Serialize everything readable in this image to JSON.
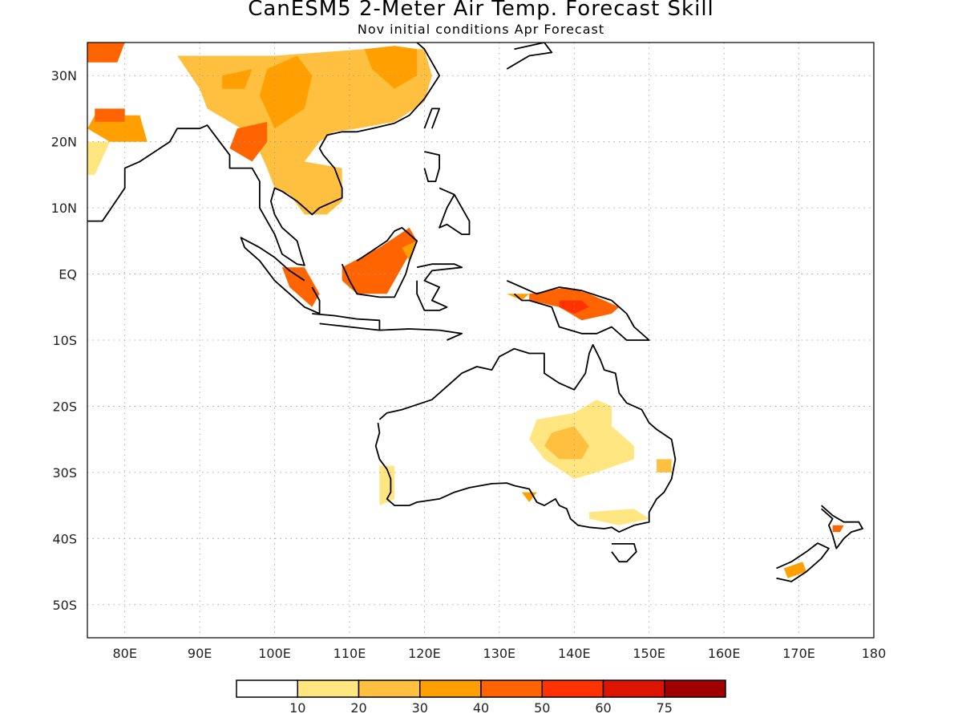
{
  "title": "CanESM5 2-Meter Air Temp. Forecast Skill",
  "subtitle": "Nov initial conditions  Apr Forecast",
  "map": {
    "lon_range": [
      75,
      180
    ],
    "lat_range": [
      -55,
      35
    ],
    "lon_ticks": [
      {
        "value": 80,
        "label": "80E"
      },
      {
        "value": 90,
        "label": "90E"
      },
      {
        "value": 100,
        "label": "100E"
      },
      {
        "value": 110,
        "label": "110E"
      },
      {
        "value": 120,
        "label": "120E"
      },
      {
        "value": 130,
        "label": "130E"
      },
      {
        "value": 140,
        "label": "140E"
      },
      {
        "value": 150,
        "label": "150E"
      },
      {
        "value": 160,
        "label": "160E"
      },
      {
        "value": 170,
        "label": "170E"
      },
      {
        "value": 180,
        "label": "180"
      }
    ],
    "lat_ticks": [
      {
        "value": 30,
        "label": "30N"
      },
      {
        "value": 20,
        "label": "20N"
      },
      {
        "value": 10,
        "label": "10N"
      },
      {
        "value": 0,
        "label": "EQ"
      },
      {
        "value": -10,
        "label": "10S"
      },
      {
        "value": -20,
        "label": "20S"
      },
      {
        "value": -30,
        "label": "30S"
      },
      {
        "value": -40,
        "label": "40S"
      },
      {
        "value": -50,
        "label": "50S"
      }
    ],
    "grid": "dotted"
  },
  "colorbar": {
    "labels": [
      "10",
      "20",
      "30",
      "40",
      "50",
      "60",
      "75"
    ],
    "colors": [
      "#ffffff",
      "#ffe680",
      "#ffc040",
      "#ffa000",
      "#ff6400",
      "#ff3200",
      "#dc1400",
      "#a00000"
    ]
  },
  "skill_patches": [
    {
      "level": 2,
      "points": [
        [
          87,
          33
        ],
        [
          100,
          33
        ],
        [
          112,
          34
        ],
        [
          120,
          34
        ],
        [
          121,
          30
        ],
        [
          120,
          26
        ],
        [
          116,
          23
        ],
        [
          111,
          22
        ],
        [
          108,
          21.5
        ],
        [
          106,
          20
        ],
        [
          104,
          17
        ],
        [
          109,
          16
        ],
        [
          109,
          11
        ],
        [
          107,
          9
        ],
        [
          104,
          9
        ],
        [
          102,
          12
        ],
        [
          100,
          13
        ],
        [
          99,
          16
        ],
        [
          97,
          21
        ],
        [
          94,
          23
        ],
        [
          91,
          25
        ],
        [
          90,
          28
        ]
      ]
    },
    {
      "level": 3,
      "points": [
        [
          99,
          31
        ],
        [
          103,
          33
        ],
        [
          105,
          30
        ],
        [
          104,
          25
        ],
        [
          100,
          22
        ],
        [
          98,
          27
        ]
      ]
    },
    {
      "level": 3,
      "points": [
        [
          112,
          34
        ],
        [
          116,
          34.5
        ],
        [
          119,
          34
        ],
        [
          119,
          30
        ],
        [
          116,
          28
        ],
        [
          113,
          31
        ]
      ]
    },
    {
      "level": 4,
      "points": [
        [
          95,
          22
        ],
        [
          99,
          23
        ],
        [
          99,
          20
        ],
        [
          97,
          17
        ],
        [
          94,
          19
        ]
      ]
    },
    {
      "level": 4,
      "points": [
        [
          75,
          35
        ],
        [
          80,
          35
        ],
        [
          79,
          32
        ],
        [
          75,
          32
        ]
      ]
    },
    {
      "level": 3,
      "points": [
        [
          93,
          30
        ],
        [
          97,
          31
        ],
        [
          96,
          28
        ],
        [
          93,
          28
        ]
      ]
    },
    {
      "level": 3,
      "points": [
        [
          76,
          24
        ],
        [
          82,
          24
        ],
        [
          83,
          20
        ],
        [
          78,
          20
        ],
        [
          75,
          22
        ]
      ]
    },
    {
      "level": 4,
      "points": [
        [
          76,
          25
        ],
        [
          80,
          25
        ],
        [
          80,
          23
        ],
        [
          76,
          23
        ]
      ]
    },
    {
      "level": 1,
      "points": [
        [
          75,
          20
        ],
        [
          78,
          20
        ],
        [
          76,
          15
        ],
        [
          75,
          15
        ]
      ]
    },
    {
      "level": 4,
      "points": [
        [
          109,
          1
        ],
        [
          114,
          4
        ],
        [
          118,
          7
        ],
        [
          119,
          5
        ],
        [
          117,
          1
        ],
        [
          115,
          -3
        ],
        [
          111,
          -3
        ],
        [
          109,
          -1
        ]
      ]
    },
    {
      "level": 3,
      "points": [
        [
          117,
          4
        ],
        [
          119,
          5
        ],
        [
          118,
          2
        ]
      ]
    },
    {
      "level": 4,
      "points": [
        [
          101,
          1
        ],
        [
          104,
          1
        ],
        [
          106,
          -3
        ],
        [
          105,
          -5
        ],
        [
          102,
          -2
        ]
      ]
    },
    {
      "level": 4,
      "points": [
        [
          134,
          -3
        ],
        [
          139,
          -2
        ],
        [
          142,
          -3
        ],
        [
          146,
          -5
        ],
        [
          145,
          -6
        ],
        [
          141,
          -7
        ],
        [
          138,
          -5
        ],
        [
          134,
          -4
        ]
      ]
    },
    {
      "level": 5,
      "points": [
        [
          138,
          -4
        ],
        [
          141,
          -4
        ],
        [
          142,
          -5
        ],
        [
          140,
          -6
        ],
        [
          138,
          -5
        ]
      ]
    },
    {
      "level": 3,
      "points": [
        [
          131,
          -3
        ],
        [
          134,
          -3
        ],
        [
          133,
          -4
        ]
      ]
    },
    {
      "level": 1,
      "points": [
        [
          135,
          -22
        ],
        [
          140,
          -21
        ],
        [
          143,
          -19
        ],
        [
          145,
          -20
        ],
        [
          145,
          -23
        ],
        [
          148,
          -26
        ],
        [
          148,
          -28
        ],
        [
          143,
          -30
        ],
        [
          140,
          -31
        ],
        [
          136,
          -28
        ],
        [
          134,
          -25
        ]
      ]
    },
    {
      "level": 2,
      "points": [
        [
          137,
          -24
        ],
        [
          140,
          -23
        ],
        [
          142,
          -26
        ],
        [
          141,
          -28
        ],
        [
          138,
          -28
        ],
        [
          136,
          -26
        ]
      ]
    },
    {
      "level": 1,
      "points": [
        [
          114,
          -29
        ],
        [
          116,
          -29
        ],
        [
          116,
          -34
        ],
        [
          114,
          -35
        ]
      ]
    },
    {
      "level": 2,
      "points": [
        [
          151,
          -28
        ],
        [
          153,
          -28
        ],
        [
          153,
          -30
        ],
        [
          151,
          -30
        ]
      ]
    },
    {
      "level": 1,
      "points": [
        [
          142,
          -36
        ],
        [
          148,
          -35.5
        ],
        [
          150,
          -37
        ],
        [
          146,
          -38
        ],
        [
          142,
          -37
        ]
      ]
    },
    {
      "level": 3,
      "points": [
        [
          168,
          -44.5
        ],
        [
          170.5,
          -43.5
        ],
        [
          171,
          -45
        ],
        [
          168.5,
          -46
        ]
      ]
    },
    {
      "level": 4,
      "points": [
        [
          174.5,
          -38
        ],
        [
          176,
          -38
        ],
        [
          175.5,
          -39
        ],
        [
          174.5,
          -39
        ]
      ]
    },
    {
      "level": 3,
      "points": [
        [
          133,
          -33
        ],
        [
          135,
          -33
        ],
        [
          134,
          -34.5
        ]
      ]
    }
  ],
  "coastlines": [
    [
      [
        75,
        8
      ],
      [
        77,
        8
      ],
      [
        80,
        13
      ],
      [
        80,
        16
      ],
      [
        82,
        17
      ],
      [
        86,
        20
      ],
      [
        87,
        22
      ],
      [
        88,
        22
      ],
      [
        90,
        22
      ],
      [
        91,
        22.5
      ],
      [
        92,
        21
      ],
      [
        94,
        18
      ],
      [
        94,
        16
      ],
      [
        97,
        16
      ],
      [
        98,
        14
      ],
      [
        98,
        10
      ],
      [
        99,
        8
      ],
      [
        100,
        6
      ],
      [
        101,
        3
      ],
      [
        103,
        1.5
      ],
      [
        104,
        1.3
      ],
      [
        103.5,
        3
      ],
      [
        103,
        5
      ],
      [
        102,
        6
      ],
      [
        101,
        7
      ],
      [
        100,
        9
      ],
      [
        99.5,
        11
      ],
      [
        100,
        13
      ],
      [
        101,
        12.5
      ],
      [
        103,
        11
      ],
      [
        105,
        9
      ],
      [
        106,
        10
      ],
      [
        109,
        11.5
      ],
      [
        109,
        13
      ],
      [
        108,
        16
      ],
      [
        106.5,
        18
      ],
      [
        106,
        19
      ],
      [
        107,
        21
      ],
      [
        109,
        21.5
      ],
      [
        111,
        21.5
      ],
      [
        113,
        22
      ],
      [
        116,
        22.8
      ],
      [
        118,
        24
      ],
      [
        120,
        26.5
      ],
      [
        122,
        30
      ],
      [
        121,
        32
      ],
      [
        120,
        34
      ],
      [
        119,
        35
      ]
    ],
    [
      [
        104,
        -1
      ],
      [
        102,
        0.5
      ],
      [
        100,
        2.5
      ],
      [
        98,
        4
      ],
      [
        95.5,
        5.5
      ],
      [
        96,
        4
      ],
      [
        98,
        2
      ],
      [
        100,
        -1
      ],
      [
        102,
        -3
      ],
      [
        104,
        -5
      ],
      [
        106,
        -6
      ],
      [
        106,
        -4
      ],
      [
        105,
        -2
      ]
    ],
    [
      [
        105,
        -6
      ],
      [
        108,
        -6.3
      ],
      [
        111,
        -6.8
      ],
      [
        114,
        -7
      ],
      [
        114,
        -8.5
      ],
      [
        110,
        -8
      ],
      [
        106,
        -7.5
      ]
    ],
    [
      [
        109,
        1.5
      ],
      [
        110,
        -1
      ],
      [
        111,
        -3
      ],
      [
        114,
        -3.5
      ],
      [
        116,
        -3.5
      ],
      [
        117.5,
        0
      ],
      [
        118,
        2
      ],
      [
        119,
        5
      ],
      [
        117,
        7
      ],
      [
        116,
        6.5
      ],
      [
        115,
        5
      ],
      [
        113,
        3.5
      ],
      [
        111,
        2
      ]
    ],
    [
      [
        119,
        1
      ],
      [
        121,
        1.5
      ],
      [
        124,
        1.5
      ],
      [
        125,
        1
      ],
      [
        121,
        0.5
      ],
      [
        120,
        -1
      ],
      [
        122,
        -2
      ],
      [
        121,
        -4
      ],
      [
        123,
        -5
      ],
      [
        122,
        -5.5
      ],
      [
        120,
        -5.5
      ],
      [
        119,
        -3
      ],
      [
        119,
        -1
      ]
    ],
    [
      [
        120,
        18.5
      ],
      [
        122,
        18
      ],
      [
        122,
        16
      ],
      [
        121.5,
        14
      ],
      [
        120.5,
        14
      ],
      [
        120,
        16
      ]
    ],
    [
      [
        122,
        13
      ],
      [
        124,
        12
      ],
      [
        125,
        10
      ],
      [
        126,
        8
      ],
      [
        126,
        6
      ],
      [
        125,
        6
      ],
      [
        123,
        7.5
      ],
      [
        122,
        7
      ],
      [
        123,
        10
      ],
      [
        124,
        12
      ]
    ],
    [
      [
        114,
        -8.5
      ],
      [
        118,
        -8.3
      ],
      [
        122,
        -8.5
      ],
      [
        125,
        -9
      ],
      [
        123,
        -10
      ]
    ],
    [
      [
        131,
        -1
      ],
      [
        135,
        -3
      ],
      [
        138,
        -2
      ],
      [
        141,
        -2.5
      ],
      [
        145,
        -4
      ],
      [
        147,
        -6
      ],
      [
        148,
        -8
      ],
      [
        150,
        -10
      ],
      [
        147,
        -10
      ],
      [
        145,
        -8
      ],
      [
        143,
        -9
      ],
      [
        141,
        -9
      ],
      [
        138,
        -8
      ],
      [
        137,
        -5
      ],
      [
        134,
        -4
      ],
      [
        133,
        -4
      ],
      [
        132,
        -3
      ]
    ],
    [
      [
        114,
        -22
      ],
      [
        115,
        -21
      ],
      [
        117,
        -20.5
      ],
      [
        121,
        -19
      ],
      [
        123,
        -17
      ],
      [
        125,
        -15
      ],
      [
        127,
        -14
      ],
      [
        129,
        -14.5
      ],
      [
        130,
        -12.5
      ],
      [
        132,
        -11.3
      ],
      [
        134,
        -12
      ],
      [
        136,
        -12
      ],
      [
        136,
        -15
      ],
      [
        138,
        -16.5
      ],
      [
        140,
        -17.5
      ],
      [
        141.5,
        -15
      ],
      [
        142,
        -12
      ],
      [
        142.5,
        -10.7
      ],
      [
        143.5,
        -13
      ],
      [
        144,
        -14.5
      ],
      [
        145.5,
        -15
      ],
      [
        146,
        -18
      ],
      [
        147,
        -19.5
      ],
      [
        149,
        -20.5
      ],
      [
        150,
        -22.5
      ],
      [
        151,
        -23.5
      ],
      [
        153,
        -25
      ],
      [
        153.5,
        -28
      ],
      [
        153,
        -31
      ],
      [
        152,
        -33
      ],
      [
        151,
        -34
      ],
      [
        150,
        -36
      ],
      [
        150,
        -37.5
      ],
      [
        148,
        -38
      ],
      [
        146,
        -39
      ],
      [
        145,
        -38.3
      ],
      [
        144,
        -38.5
      ],
      [
        142,
        -38.3
      ],
      [
        140.5,
        -38
      ],
      [
        139.5,
        -37
      ],
      [
        139,
        -35.5
      ],
      [
        138,
        -35
      ],
      [
        137.5,
        -34
      ],
      [
        136,
        -35
      ],
      [
        135,
        -34.5
      ],
      [
        134,
        -32.5
      ],
      [
        132,
        -32
      ],
      [
        131,
        -31.6
      ],
      [
        129,
        -31.7
      ],
      [
        126,
        -32.3
      ],
      [
        124,
        -33
      ],
      [
        122,
        -34
      ],
      [
        119,
        -34.5
      ],
      [
        118,
        -35
      ],
      [
        116,
        -35
      ],
      [
        115,
        -34
      ],
      [
        115.5,
        -33
      ],
      [
        115.5,
        -31
      ],
      [
        115,
        -29.5
      ],
      [
        114,
        -28
      ],
      [
        113.5,
        -26
      ],
      [
        114,
        -24
      ],
      [
        113.8,
        -22.5
      ]
    ],
    [
      [
        145,
        -40.8
      ],
      [
        148,
        -40.8
      ],
      [
        148.3,
        -42
      ],
      [
        147,
        -43.5
      ],
      [
        146,
        -43.5
      ],
      [
        145,
        -42
      ]
    ],
    [
      [
        167,
        -46
      ],
      [
        169,
        -46.5
      ],
      [
        171,
        -45
      ],
      [
        173,
        -43
      ],
      [
        174,
        -41.5
      ],
      [
        172.5,
        -40.7
      ],
      [
        171,
        -42
      ],
      [
        169,
        -43.5
      ],
      [
        167,
        -44.5
      ]
    ],
    [
      [
        173,
        -35
      ],
      [
        174.5,
        -36.5
      ],
      [
        176,
        -37.5
      ],
      [
        178,
        -37.5
      ],
      [
        178.5,
        -38.5
      ],
      [
        177,
        -39
      ],
      [
        176,
        -40
      ],
      [
        175,
        -41.5
      ],
      [
        174.5,
        -39.5
      ],
      [
        174,
        -38
      ],
      [
        174.5,
        -37
      ],
      [
        173,
        -35.5
      ]
    ],
    [
      [
        120,
        22
      ],
      [
        121,
        25
      ],
      [
        122,
        25
      ],
      [
        121,
        22
      ]
    ],
    [
      [
        132,
        34
      ],
      [
        136,
        35
      ],
      [
        137,
        33.5
      ],
      [
        134,
        33
      ],
      [
        131,
        31
      ]
    ]
  ]
}
